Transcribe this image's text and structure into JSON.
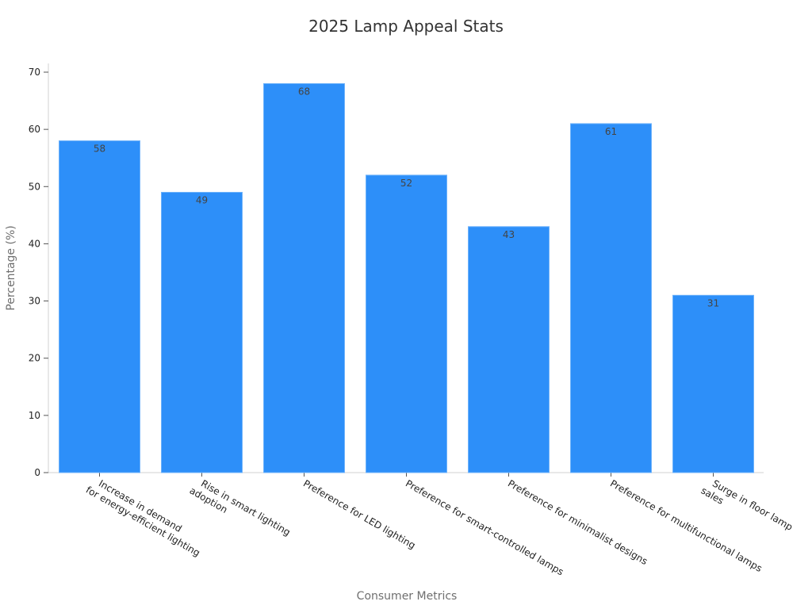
{
  "chart_data": {
    "type": "bar",
    "title": "2025 Lamp Appeal Stats",
    "xlabel": "Consumer Metrics",
    "ylabel": "Percentage (%)",
    "ylim": [
      0,
      70
    ],
    "yticks": [
      0,
      10,
      20,
      30,
      40,
      50,
      60,
      70
    ],
    "grid": false,
    "legend": "none",
    "bar_color": "#2d8ff9",
    "categories": [
      [
        "Increase in demand",
        "for energy-efficient lighting"
      ],
      [
        "Rise in smart lighting",
        "adoption"
      ],
      [
        "Preference for LED lighting"
      ],
      [
        "Preference for smart-controlled lamps"
      ],
      [
        "Preference for minimalist designs"
      ],
      [
        "Preference for multifunctional lamps"
      ],
      [
        "Surge in floor lamp",
        "sales"
      ]
    ],
    "values": [
      58,
      49,
      68,
      52,
      43,
      61,
      31
    ]
  }
}
